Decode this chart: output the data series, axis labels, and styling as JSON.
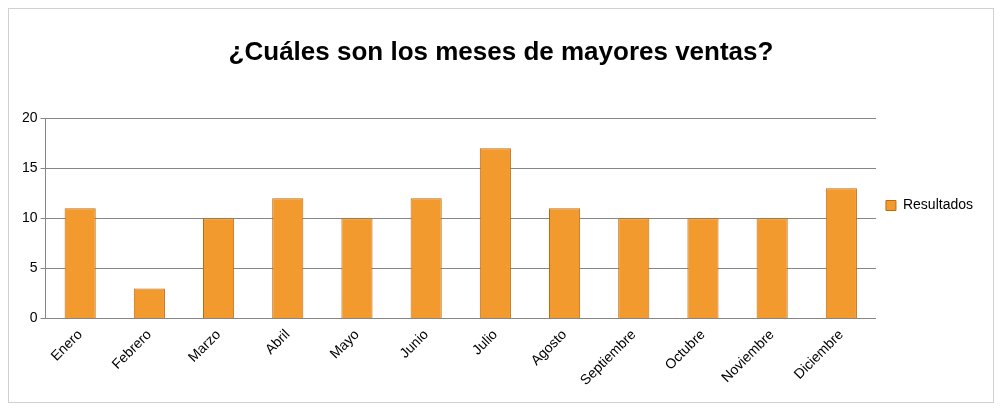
{
  "chart_data": {
    "type": "bar",
    "title": "¿Cuáles son los meses de mayores ventas?",
    "categories": [
      "Enero",
      "Febrero",
      "Marzo",
      "Abril",
      "Mayo",
      "Junio",
      "Julio",
      "Agosto",
      "Septiembre",
      "Octubre",
      "Noviembre",
      "Diciembre"
    ],
    "series": [
      {
        "name": "Resultados",
        "color": "#f29a2e",
        "values": [
          11,
          3,
          10,
          12,
          10,
          12,
          17,
          11,
          10,
          10,
          10,
          13
        ]
      }
    ],
    "ylim": [
      0,
      20
    ],
    "yticks": [
      0,
      5,
      10,
      15,
      20
    ],
    "grid": "y",
    "legend": "right"
  }
}
